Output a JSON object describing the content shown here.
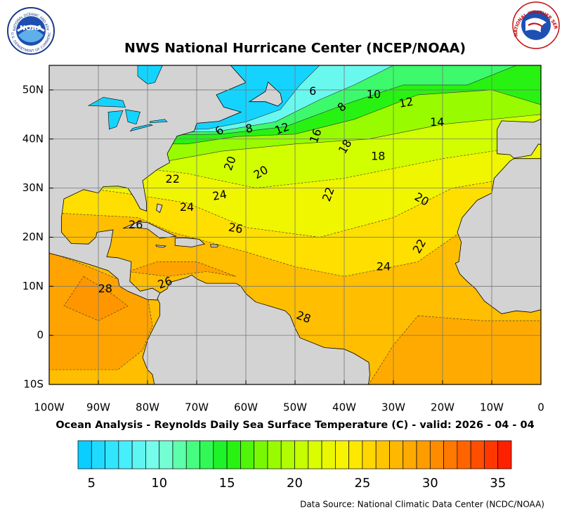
{
  "header": {
    "title": "NWS National Hurricane Center (NCEP/NOAA)",
    "logo_left": "NOAA",
    "logo_left_ring": "NATIONAL OCEANIC AND ATMOSPHERIC ADMINISTRATION",
    "logo_left_ring2": "U.S. DEPARTMENT OF COMMERCE",
    "logo_right_ring": "NATIONAL WEATHER SERVICE"
  },
  "map": {
    "xlim": [
      -100,
      0
    ],
    "ylim": [
      -10,
      55
    ],
    "xticks": [
      {
        "value": -100,
        "label": "100W"
      },
      {
        "value": -90,
        "label": "90W"
      },
      {
        "value": -80,
        "label": "80W"
      },
      {
        "value": -70,
        "label": "70W"
      },
      {
        "value": -60,
        "label": "60W"
      },
      {
        "value": -50,
        "label": "50W"
      },
      {
        "value": -40,
        "label": "40W"
      },
      {
        "value": -30,
        "label": "30W"
      },
      {
        "value": -20,
        "label": "20W"
      },
      {
        "value": -10,
        "label": "10W"
      },
      0
    ],
    "yticks": [
      {
        "value": -10,
        "label": "10S"
      },
      0,
      {
        "value": 10,
        "label": "10N"
      },
      {
        "value": 20,
        "label": "20N"
      },
      {
        "value": 30,
        "label": "30N"
      },
      {
        "value": 40,
        "label": "40N"
      },
      {
        "value": 50,
        "label": "50N"
      }
    ],
    "grid": true,
    "contour_labels": [
      6,
      10,
      12,
      14,
      8,
      6,
      8,
      12,
      16,
      18,
      18,
      20,
      20,
      22,
      22,
      20,
      24,
      24,
      26,
      26,
      22,
      24,
      28,
      26,
      28
    ]
  },
  "caption": "Ocean Analysis - Reynolds Daily Sea Surface Temperature (C) - valid: 2026 - 04 - 04",
  "colorbar": {
    "lim": [
      4,
      36
    ],
    "ticks": [
      5,
      10,
      15,
      20,
      25,
      30,
      35
    ]
  },
  "source": "Data Source: National Climatic Data Center (NCDC/NOAA)"
}
